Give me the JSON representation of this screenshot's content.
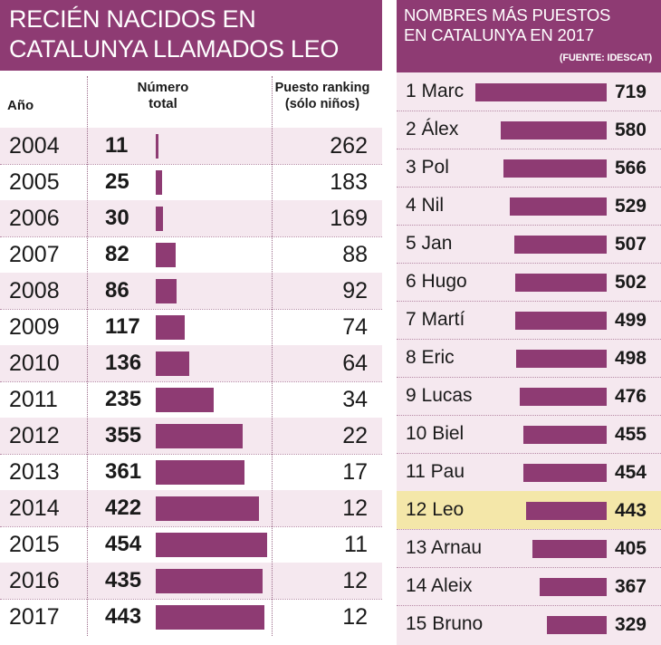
{
  "chart_data": [
    {
      "type": "table",
      "title": "RECIÉN NACIDOS EN\nCATALUNYA LLAMADOS LEO",
      "columns": [
        "Año",
        "Número\ntotal",
        "Puesto ranking\n(sólo niños)"
      ],
      "rows": [
        {
          "year": "2004",
          "count": 11,
          "rank": 262
        },
        {
          "year": "2005",
          "count": 25,
          "rank": 183
        },
        {
          "year": "2006",
          "count": 30,
          "rank": 169
        },
        {
          "year": "2007",
          "count": 82,
          "rank": 88
        },
        {
          "year": "2008",
          "count": 86,
          "rank": 92
        },
        {
          "year": "2009",
          "count": 117,
          "rank": 74
        },
        {
          "year": "2010",
          "count": 136,
          "rank": 64
        },
        {
          "year": "2011",
          "count": 235,
          "rank": 34
        },
        {
          "year": "2012",
          "count": 355,
          "rank": 22
        },
        {
          "year": "2013",
          "count": 361,
          "rank": 17
        },
        {
          "year": "2014",
          "count": 422,
          "rank": 12
        },
        {
          "year": "2015",
          "count": 454,
          "rank": 11
        },
        {
          "year": "2016",
          "count": 435,
          "rank": 12
        },
        {
          "year": "2017",
          "count": 443,
          "rank": 12
        }
      ],
      "bar_max": 454
    },
    {
      "type": "bar",
      "orientation": "horizontal",
      "title": "NOMBRES MÁS PUESTOS\nEN CATALUNYA EN 2017",
      "source": "(FUENTE: IDESCAT)",
      "categories": [
        "1 Marc",
        "2 Álex",
        "3 Pol",
        "4 Nil",
        "5 Jan",
        "6 Hugo",
        "7 Martí",
        "8 Eric",
        "9 Lucas",
        "10 Biel",
        "11 Pau",
        "12 Leo",
        "13 Arnau",
        "14 Aleix",
        "15 Bruno"
      ],
      "values": [
        719,
        580,
        566,
        529,
        507,
        502,
        499,
        498,
        476,
        455,
        454,
        443,
        405,
        367,
        329
      ],
      "highlight": "12 Leo",
      "bar_max": 719
    }
  ],
  "colors": {
    "accent": "#8e3b73",
    "row_shade": "#f5e8ef",
    "highlight": "#f4e7a9"
  }
}
